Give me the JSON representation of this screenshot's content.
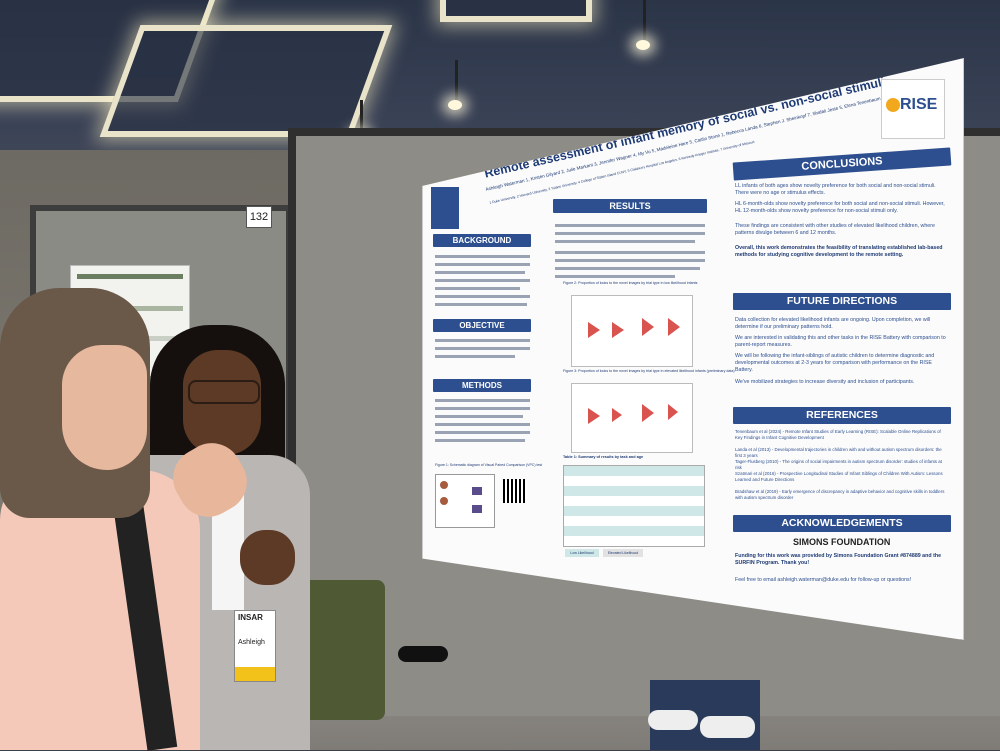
{
  "booth_number": "132",
  "poster": {
    "logo": "RISE",
    "title": "Remote assessment of infant memory of social vs. non-social stimuli",
    "authors": "Ashleigh Waterman 1, Kristen Gilyard 2, Julie Markant 3, Jennifer Wagner 4, My Vu 5, Madeleine Hare 5, Caitlin Stone 1, Rebecca Landa 6, Stephen J. Sheinkopf 7, Shafali Jeste 5, Elena Tenenbaum 1",
    "affiliations": "1 Duke University, 2 Harvard University, 3 Tulane University, 4 College of Staten Island CUNY, 5 Children's Hospital Los Angeles, 6 Kennedy Krieger Institute, 7 University of Missouri",
    "sections": {
      "background": "BACKGROUND",
      "objective": "OBJECTIVE",
      "methods": "METHODS",
      "results": "RESULTS",
      "conclusions": "CONCLUSIONS",
      "future": "FUTURE DIRECTIONS",
      "references": "REFERENCES",
      "acknowledgements": "ACKNOWLEDGEMENTS"
    },
    "conclusions_text": [
      "LL infants of both ages show novelty preference for both social and non-social stimuli. There were no age or stimulus effects.",
      "HL 6-month-olds show novelty preference for both social and non-social stimuli. However, HL 12-month-olds show novelty preference for non-social stimuli only.",
      "These findings are consistent with other studies of elevated likelihood children, where patterns divulge between 6 and 12 months.",
      "Overall, this work demonstrates the feasibility of translating established lab-based methods for studying cognitive development to the remote setting."
    ],
    "future_text": [
      "Data collection for elevated likelihood infants are ongoing. Upon completion, we will determine if our preliminary patterns hold.",
      "We are interested in validating this and other tasks in the RISE Battery with comparison to parent-report measures.",
      "We will be following the infant-siblings of autistic children to determine diagnostic and developmental outcomes at 2-3 years for comparison with performance on the RISE Battery.",
      "We've mobilized strategies to increase diversity and inclusion of participants."
    ],
    "results_hypotheses": [
      "Hypothesis 1: For both faces and Fribbles, 6- and 12-month-olds showed preference for the novel stimulus. There was no significant difference between age group or stimulus type.",
      "Hypothesis 2: For LL 6- and 12-month-olds showed novelty preference for both faces and Fribbles. For HL, while 6-month-olds showed novelty preference for both Faces and Fribbles, 12-month-olds showed novelty preference only for Fribbles."
    ],
    "figure2_caption": "Figure 2: Proportion of looks to the novel images by trial type in low likelihood infants",
    "figure3_caption": "Figure 3: Proportion of looks to the novel images by trial type in elevated likelihood infants (preliminary data)",
    "table1_caption": "Table 1: Summary of results by task and age",
    "figure1_caption": "Figure 1: Schematic diagram of Visual Paired Comparison (VPC) test",
    "legend_low": "Low Likelihood",
    "legend_elevated": "Elevated Likelihood",
    "funding": "Funding for this work was provided by Simons Foundation Grant #874889 and the SURFIN Program. Thank you!",
    "contact": "Feel free to email ashleigh.waterman@duke.edu for follow-up or questions!",
    "sponsor": "SIMONS FOUNDATION",
    "references_text": [
      "Tenenbaum et al (2024) - Remote Infant Studies of Early Learning (RISE): Scalable Online Replications of Key Findings in Infant Cognitive Development",
      "Landa et al (2013) - Developmental trajectories in children with and without autism spectrum disorders: the first 3 years",
      "Tager-Flusberg (2010) - The origins of social impairments in autism spectrum disorder: studies of infants at risk",
      "Szatmari et al (2016) - Prospective Longitudinal Studies of Infant Siblings of Children With Autism: Lessons Learned and Future Directions",
      "Bradshaw et al (2019) - Early emergence of discrepancy in adaptive behavior and cognitive skills in toddlers with autism spectrum disorder"
    ]
  },
  "badge": {
    "org": "INSAR",
    "name": "Ashleigh"
  }
}
